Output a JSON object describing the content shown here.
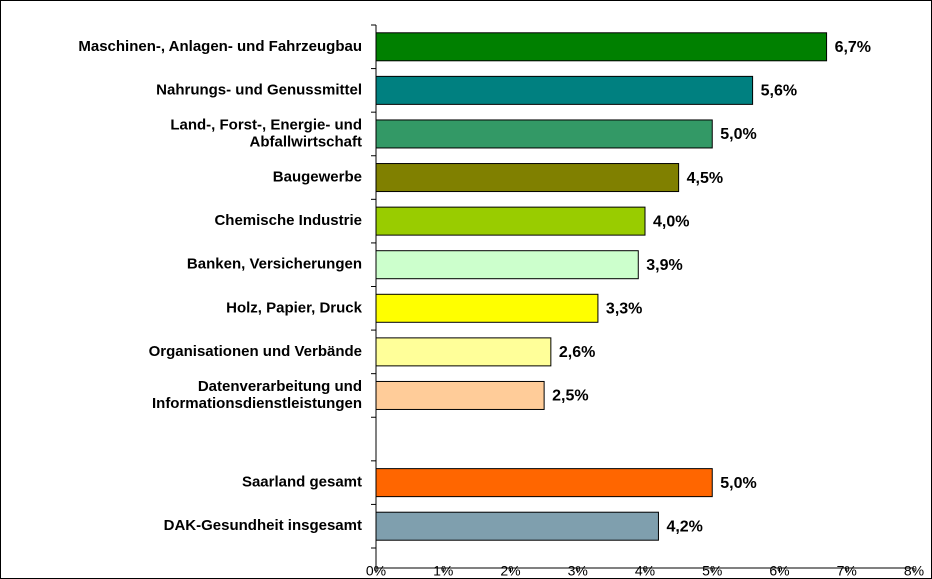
{
  "chart_data": {
    "type": "barh",
    "categories": [
      "Maschinen-, Anlagen- und Fahrzeugbau",
      "Nahrungs- und Genussmittel",
      "Land-, Forst-,  Energie- und\nAbfallwirtschaft",
      "Baugewerbe",
      "Chemische Industrie",
      "Banken, Versicherungen",
      "Holz, Papier, Druck",
      "Organisationen und Verbände",
      "Datenverarbeitung und\nInformationsdienstleistungen",
      null,
      "Saarland gesamt",
      "DAK-Gesundheit insgesamt"
    ],
    "values": [
      6.7,
      5.6,
      5.0,
      4.5,
      4.0,
      3.9,
      3.3,
      2.6,
      2.5,
      null,
      5.0,
      4.2
    ],
    "value_labels": [
      "6,7%",
      "5,6%",
      "5,0%",
      "4,5%",
      "4,0%",
      "3,9%",
      "3,3%",
      "2,6%",
      "2,5%",
      null,
      "5,0%",
      "4,2%"
    ],
    "colors": [
      "#008000",
      "#008080",
      "#339966",
      "#808000",
      "#99cc00",
      "#ccffcc",
      "#ffff00",
      "#ffff99",
      "#ffcc99",
      null,
      "#ff6600",
      "#7f9fae"
    ],
    "xlim": [
      0,
      8
    ],
    "xticks": [
      {
        "value": 0,
        "label": "0%"
      },
      {
        "value": 1,
        "label": "1%"
      },
      {
        "value": 2,
        "label": "2%"
      },
      {
        "value": 3,
        "label": "3%"
      },
      {
        "value": 4,
        "label": "4%"
      },
      {
        "value": 5,
        "label": "5%"
      },
      {
        "value": 6,
        "label": "6%"
      },
      {
        "value": 7,
        "label": "7%"
      },
      {
        "value": 8,
        "label": "8%"
      }
    ]
  }
}
